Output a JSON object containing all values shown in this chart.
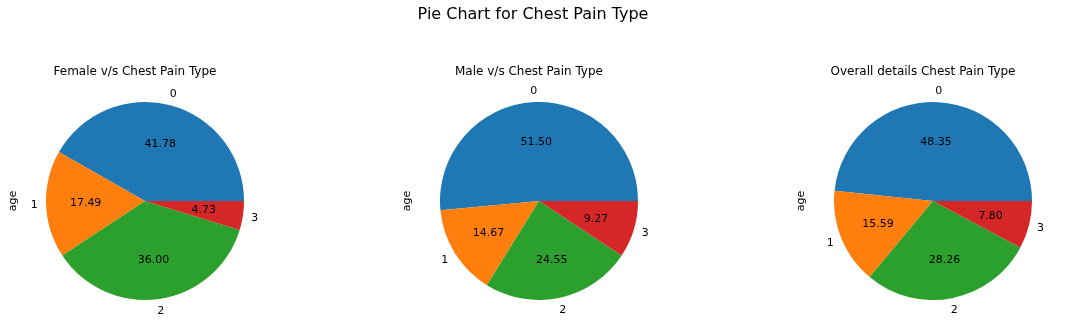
{
  "chart_data": [
    {
      "type": "pie",
      "title": "Female v/s Chest Pain Type",
      "ylabel": "age",
      "annotations": [
        "Pie Chart for Chest Pain Type"
      ],
      "categories": [
        "0",
        "1",
        "2",
        "3"
      ],
      "values": [
        41.78,
        17.49,
        36.0,
        4.73
      ],
      "value_labels": [
        "41.78",
        "17.49",
        "36.00",
        "4.73"
      ],
      "colors": [
        "#1f77b4",
        "#ff7f0e",
        "#2ca02c",
        "#d62728"
      ]
    },
    {
      "type": "pie",
      "title": "Male v/s Chest Pain Type",
      "ylabel": "age",
      "categories": [
        "0",
        "1",
        "2",
        "3"
      ],
      "values": [
        51.5,
        14.67,
        24.55,
        9.27
      ],
      "value_labels": [
        "51.50",
        "14.67",
        "24.55",
        "9.27"
      ],
      "colors": [
        "#1f77b4",
        "#ff7f0e",
        "#2ca02c",
        "#d62728"
      ]
    },
    {
      "type": "pie",
      "title": "Overall details Chest Pain Type",
      "ylabel": "age",
      "categories": [
        "0",
        "1",
        "2",
        "3"
      ],
      "values": [
        48.35,
        15.59,
        28.26,
        7.8
      ],
      "value_labels": [
        "48.35",
        "15.59",
        "28.26",
        "7.80"
      ],
      "colors": [
        "#1f77b4",
        "#ff7f0e",
        "#2ca02c",
        "#d62728"
      ]
    }
  ]
}
